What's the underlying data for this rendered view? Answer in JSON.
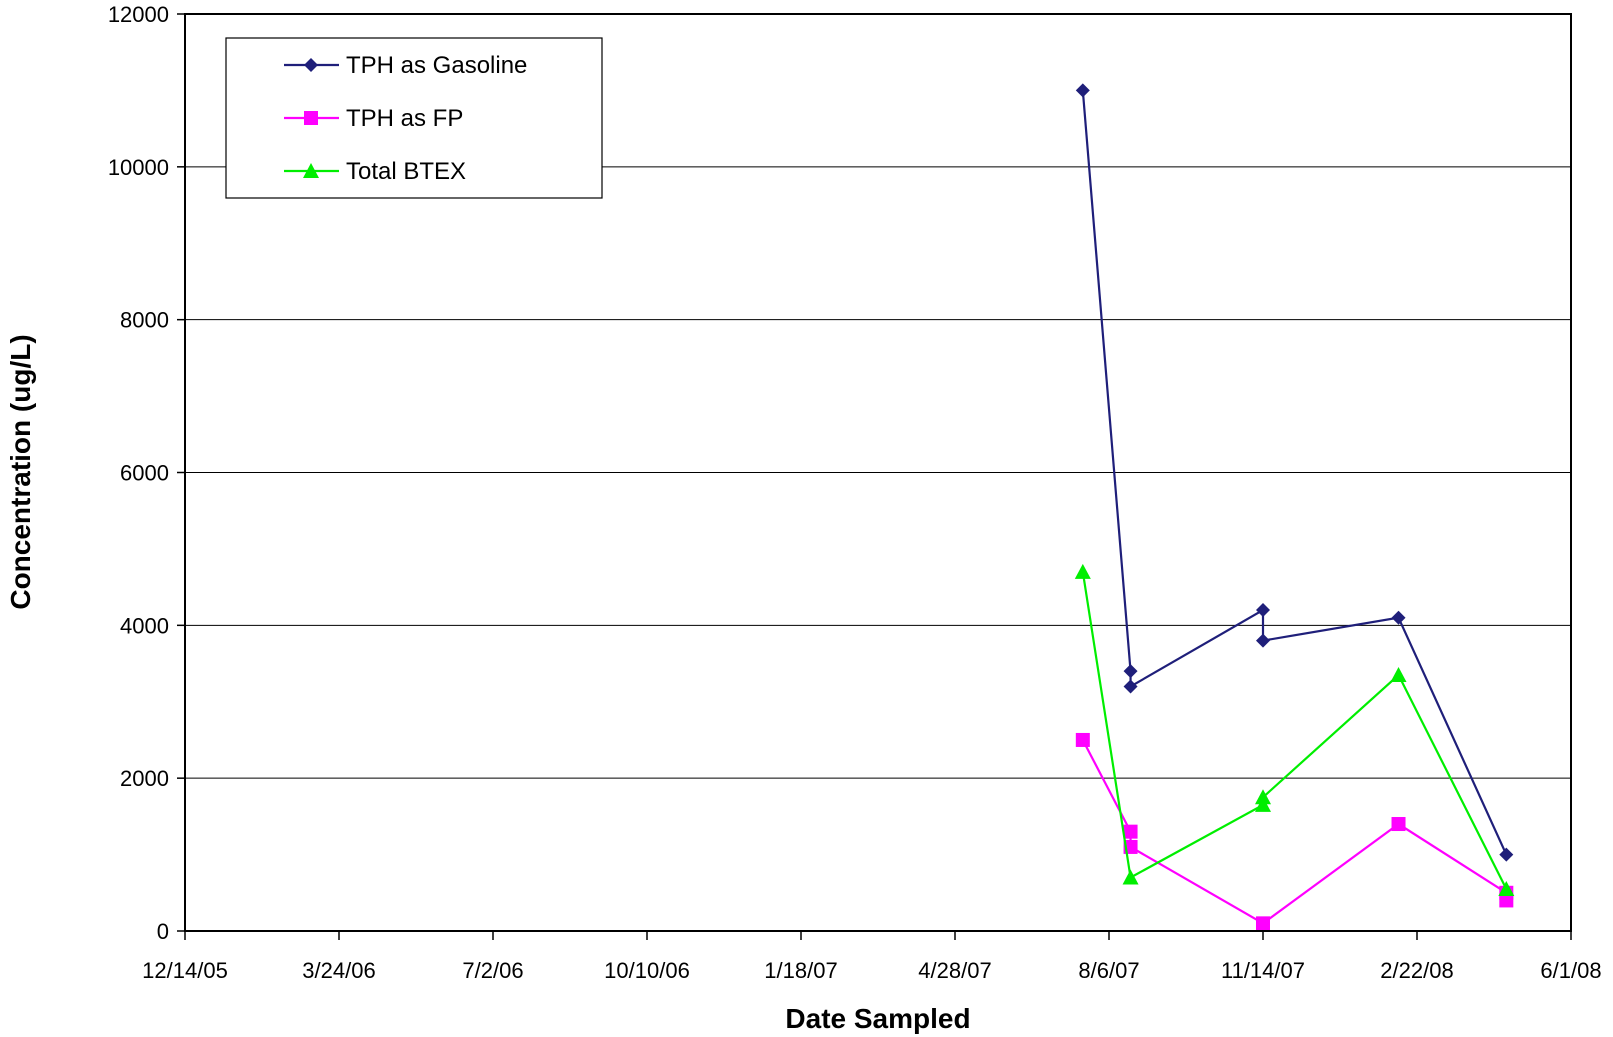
{
  "chart_data": {
    "type": "line",
    "title": "",
    "xlabel": "Date Sampled",
    "ylabel": "Concentration (ug/L)",
    "xlim": [
      "2005-12-14",
      "2008-06-01"
    ],
    "ylim": [
      0,
      12000
    ],
    "x_ticks": [
      "12/14/05",
      "3/24/06",
      "7/2/06",
      "10/10/06",
      "1/18/07",
      "4/28/07",
      "8/6/07",
      "11/14/07",
      "2/22/08",
      "6/1/08"
    ],
    "y_ticks": [
      0,
      2000,
      4000,
      6000,
      8000,
      10000,
      12000
    ],
    "grid": "horizontal",
    "legend_position": "top-left",
    "series": [
      {
        "name": "TPH as Gasoline",
        "color": "#1f1f7a",
        "marker": "diamond",
        "points": [
          {
            "x": "2007-07-20",
            "y": 11000
          },
          {
            "x": "2007-08-20",
            "y": 3400
          },
          {
            "x": "2007-08-20",
            "y": 3200
          },
          {
            "x": "2007-11-14",
            "y": 4200
          },
          {
            "x": "2007-11-14",
            "y": 3800
          },
          {
            "x": "2008-02-10",
            "y": 4100
          },
          {
            "x": "2008-04-20",
            "y": 1000
          }
        ]
      },
      {
        "name": "TPH as FP",
        "color": "#ff00ff",
        "marker": "square",
        "points": [
          {
            "x": "2007-07-20",
            "y": 2500
          },
          {
            "x": "2007-08-20",
            "y": 1300
          },
          {
            "x": "2007-08-20",
            "y": 1100
          },
          {
            "x": "2007-11-14",
            "y": 100
          },
          {
            "x": "2008-02-10",
            "y": 1400
          },
          {
            "x": "2008-04-20",
            "y": 500
          },
          {
            "x": "2008-04-20",
            "y": 400
          }
        ]
      },
      {
        "name": "Total BTEX",
        "color": "#00ee00",
        "marker": "triangle",
        "points": [
          {
            "x": "2007-07-20",
            "y": 4700
          },
          {
            "x": "2007-08-20",
            "y": 700
          },
          {
            "x": "2007-11-14",
            "y": 1650
          },
          {
            "x": "2007-11-14",
            "y": 1750
          },
          {
            "x": "2008-02-10",
            "y": 3350
          },
          {
            "x": "2008-04-20",
            "y": 550
          }
        ]
      }
    ]
  }
}
